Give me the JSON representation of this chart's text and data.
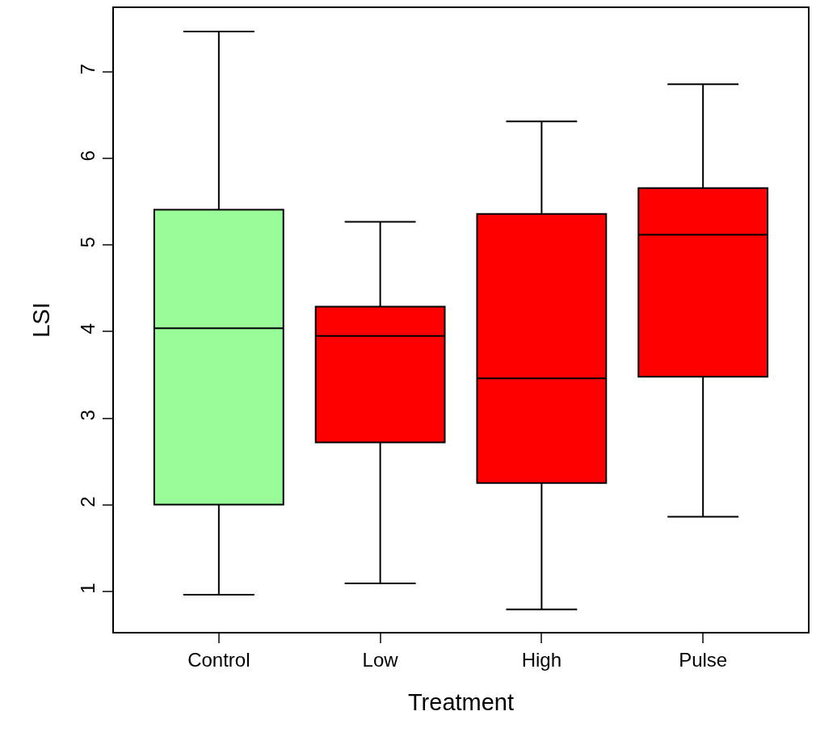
{
  "chart_data": {
    "type": "box",
    "xlabel": "Treatment",
    "ylabel": "LSI",
    "categories": [
      "Control",
      "Low",
      "High",
      "Pulse"
    ],
    "colors": [
      "#98fb98",
      "#ff0000",
      "#ff0000",
      "#ff0000"
    ],
    "boxes": [
      {
        "low": 0.96,
        "q1": 2.0,
        "median": 4.04,
        "q3": 5.41,
        "high": 7.47
      },
      {
        "low": 1.09,
        "q1": 2.72,
        "median": 3.95,
        "q3": 4.29,
        "high": 5.27
      },
      {
        "low": 0.79,
        "q1": 2.25,
        "median": 3.46,
        "q3": 5.36,
        "high": 6.43
      },
      {
        "low": 1.86,
        "q1": 3.48,
        "median": 5.12,
        "q3": 5.66,
        "high": 6.86
      }
    ],
    "ylim": [
      0.53,
      7.74
    ],
    "yticks": [
      1,
      2,
      3,
      4,
      5,
      6,
      7
    ]
  }
}
